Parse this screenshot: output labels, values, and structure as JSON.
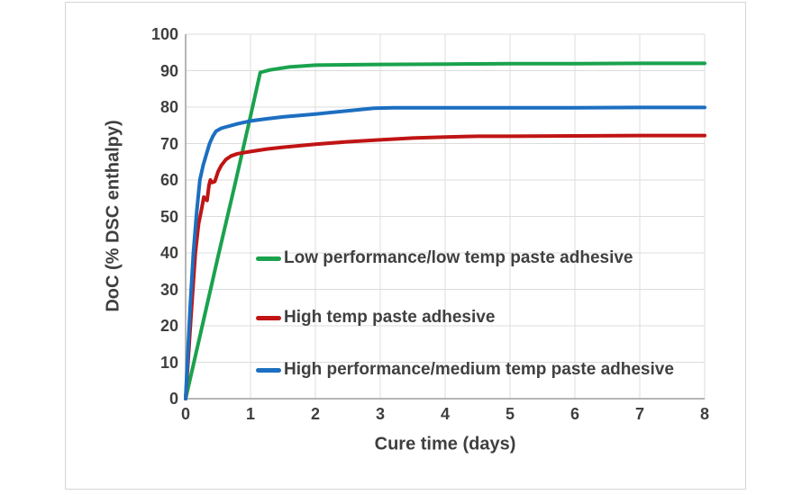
{
  "page": {
    "background": "#ffffff",
    "frame_border": "#d5d5d5"
  },
  "chart_data": {
    "type": "line",
    "title": "",
    "xlabel": "Cure time (days)",
    "ylabel": "DoC (% DSC enthalpy)",
    "xlim": [
      0,
      8
    ],
    "ylim": [
      0,
      100
    ],
    "x_ticks": [
      0,
      1,
      2,
      3,
      4,
      5,
      6,
      7,
      8
    ],
    "y_ticks": [
      0,
      10,
      20,
      30,
      40,
      50,
      60,
      70,
      80,
      90,
      100
    ],
    "grid": true,
    "grid_color": "#dcdcdc",
    "axis_color": "#9e9e9e",
    "text_color": "#3f3f3f",
    "legend_position": "inside-center-left",
    "series": [
      {
        "name": "Low performance/low temp paste adhesive",
        "color": "#1aa24d",
        "points": [
          [
            0,
            0
          ],
          [
            0.25,
            19.5
          ],
          [
            0.5,
            39
          ],
          [
            0.75,
            58
          ],
          [
            1.0,
            77.5
          ],
          [
            1.15,
            89.5
          ],
          [
            1.3,
            90.2
          ],
          [
            1.6,
            91
          ],
          [
            2,
            91.5
          ],
          [
            3,
            91.7
          ],
          [
            4,
            91.8
          ],
          [
            5,
            91.9
          ],
          [
            6,
            91.9
          ],
          [
            7,
            92
          ],
          [
            8,
            92
          ]
        ]
      },
      {
        "name": "High temp paste adhesive",
        "color": "#c01414",
        "points": [
          [
            0,
            0
          ],
          [
            0.08,
            22
          ],
          [
            0.15,
            40
          ],
          [
            0.2,
            48
          ],
          [
            0.24,
            51.5
          ],
          [
            0.28,
            55.3
          ],
          [
            0.31,
            54.7
          ],
          [
            0.33,
            54.4
          ],
          [
            0.36,
            58.5
          ],
          [
            0.38,
            60
          ],
          [
            0.41,
            59.3
          ],
          [
            0.45,
            59.6
          ],
          [
            0.5,
            62.3
          ],
          [
            0.55,
            64
          ],
          [
            0.62,
            65.6
          ],
          [
            0.7,
            66.6
          ],
          [
            0.8,
            67.2
          ],
          [
            1,
            67.8
          ],
          [
            1.25,
            68.5
          ],
          [
            1.5,
            69
          ],
          [
            2,
            69.8
          ],
          [
            2.5,
            70.5
          ],
          [
            3,
            71
          ],
          [
            3.5,
            71.5
          ],
          [
            4,
            71.8
          ],
          [
            4.5,
            72
          ],
          [
            5,
            72
          ],
          [
            6,
            72.1
          ],
          [
            7,
            72.2
          ],
          [
            8,
            72.2
          ]
        ]
      },
      {
        "name": "High performance/medium temp paste adhesive",
        "color": "#1c6fc1",
        "points": [
          [
            0,
            0
          ],
          [
            0.07,
            25
          ],
          [
            0.12,
            40
          ],
          [
            0.17,
            51
          ],
          [
            0.22,
            60
          ],
          [
            0.27,
            64
          ],
          [
            0.32,
            67
          ],
          [
            0.37,
            70
          ],
          [
            0.42,
            72
          ],
          [
            0.47,
            73.4
          ],
          [
            0.55,
            74.2
          ],
          [
            0.65,
            74.7
          ],
          [
            0.8,
            75.4
          ],
          [
            1,
            76.2
          ],
          [
            1.25,
            76.8
          ],
          [
            1.5,
            77.3
          ],
          [
            2,
            78.1
          ],
          [
            2.5,
            79
          ],
          [
            2.9,
            79.7
          ],
          [
            3.2,
            79.8
          ],
          [
            4,
            79.8
          ],
          [
            5,
            79.8
          ],
          [
            6,
            79.8
          ],
          [
            7,
            79.9
          ],
          [
            8,
            79.9
          ]
        ]
      }
    ]
  }
}
